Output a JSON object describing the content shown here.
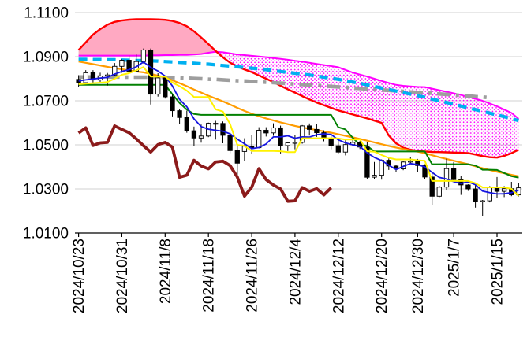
{
  "chart_data": {
    "type": "candlestick",
    "title": "",
    "style": {
      "background": "#FFFFFF",
      "grid_color": "#D0D0D0",
      "axis_color": "#000000",
      "text_color": "#000000"
    },
    "y_axis": {
      "min": 1.01,
      "max": 1.11,
      "tick_step": 0.02,
      "tick_labels": [
        "1.1100",
        "1.0900",
        "1.0700",
        "1.0500",
        "1.0300",
        "1.0100"
      ]
    },
    "x_axis": {
      "ticks": [
        {
          "label": "2024/10/23",
          "index": 0
        },
        {
          "label": "2024/10/31",
          "index": 6
        },
        {
          "label": "2024/11/8",
          "index": 12
        },
        {
          "label": "2024/11/18",
          "index": 18
        },
        {
          "label": "2024/11/26",
          "index": 24
        },
        {
          "label": "2024/12/4",
          "index": 30
        },
        {
          "label": "2024/12/12",
          "index": 36
        },
        {
          "label": "2024/12/20",
          "index": 42
        },
        {
          "label": "2024/12/30",
          "index": 47
        },
        {
          "label": "2025/1/7",
          "index": 52
        },
        {
          "label": "2025/1/15",
          "index": 58
        }
      ]
    },
    "dates": [
      "2024/10/23",
      "2024/10/24",
      "2024/10/25",
      "2024/10/28",
      "2024/10/29",
      "2024/10/30",
      "2024/10/31",
      "2024/11/1",
      "2024/11/4",
      "2024/11/5",
      "2024/11/6",
      "2024/11/7",
      "2024/11/8",
      "2024/11/11",
      "2024/11/12",
      "2024/11/13",
      "2024/11/14",
      "2024/11/15",
      "2024/11/18",
      "2024/11/19",
      "2024/11/20",
      "2024/11/21",
      "2024/11/22",
      "2024/11/25",
      "2024/11/26",
      "2024/11/27",
      "2024/11/28",
      "2024/11/29",
      "2024/12/2",
      "2024/12/3",
      "2024/12/4",
      "2024/12/5",
      "2024/12/6",
      "2024/12/9",
      "2024/12/10",
      "2024/12/11",
      "2024/12/12",
      "2024/12/13",
      "2024/12/16",
      "2024/12/17",
      "2024/12/18",
      "2024/12/19",
      "2024/12/20",
      "2024/12/23",
      "2024/12/24",
      "2024/12/26",
      "2024/12/27",
      "2024/12/30",
      "2024/12/31",
      "2025/1/2",
      "2025/1/3",
      "2025/1/6",
      "2025/1/7",
      "2025/1/8",
      "2025/1/9",
      "2025/1/10",
      "2025/1/13",
      "2025/1/14",
      "2025/1/15",
      "2025/1/16",
      "2025/1/17",
      "2025/1/20"
    ],
    "candle_style": {
      "up_fill": "#FFFFFF",
      "down_fill": "#000000",
      "stroke": "#000000"
    },
    "ohlc": {
      "open": [
        1.0797,
        1.0782,
        1.0827,
        1.0794,
        1.0812,
        1.0817,
        1.0856,
        1.0884,
        1.0834,
        1.0878,
        1.093,
        1.073,
        1.0804,
        1.0718,
        1.0655,
        1.0624,
        1.0564,
        1.0531,
        1.054,
        1.0598,
        1.0597,
        1.0543,
        1.0474,
        1.047,
        1.0494,
        1.0487,
        1.0566,
        1.0554,
        1.0577,
        1.0497,
        1.0509,
        1.0511,
        1.0586,
        1.057,
        1.0555,
        1.0527,
        1.0496,
        1.0467,
        1.0501,
        1.0511,
        1.049,
        1.0353,
        1.0362,
        1.043,
        1.0404,
        1.0391,
        1.0422,
        1.0426,
        1.0406,
        1.0354,
        1.0267,
        1.0308,
        1.0392,
        1.0342,
        1.0318,
        1.03,
        1.0244,
        1.0246,
        1.0306,
        1.0289,
        1.0301,
        1.0273
      ],
      "high": [
        1.0816,
        1.0839,
        1.0839,
        1.0827,
        1.0826,
        1.0871,
        1.0888,
        1.0905,
        1.0914,
        1.0937,
        1.0937,
        1.0825,
        1.0806,
        1.0728,
        1.0664,
        1.0655,
        1.0583,
        1.0592,
        1.0601,
        1.0609,
        1.0606,
        1.0555,
        1.0496,
        1.053,
        1.0545,
        1.058,
        1.058,
        1.0598,
        1.0587,
        1.0513,
        1.0544,
        1.059,
        1.0597,
        1.0595,
        1.0566,
        1.0539,
        1.0521,
        1.0521,
        1.0525,
        1.0518,
        1.0513,
        1.0422,
        1.0434,
        1.044,
        1.041,
        1.0426,
        1.0445,
        1.0436,
        1.0412,
        1.0374,
        1.0314,
        1.0437,
        1.0422,
        1.0359,
        1.0321,
        1.0321,
        1.025,
        1.0313,
        1.0354,
        1.0313,
        1.0332,
        1.0325
      ],
      "low": [
        1.0761,
        1.0777,
        1.078,
        1.078,
        1.0769,
        1.0812,
        1.0827,
        1.0832,
        1.0834,
        1.0869,
        1.0683,
        1.0719,
        1.071,
        1.0629,
        1.0595,
        1.0555,
        1.0496,
        1.051,
        1.0535,
        1.0524,
        1.0507,
        1.0462,
        1.0335,
        1.0425,
        1.0459,
        1.0484,
        1.0538,
        1.0541,
        1.0461,
        1.0472,
        1.048,
        1.0505,
        1.0542,
        1.0536,
        1.0516,
        1.048,
        1.0461,
        1.0452,
        1.0495,
        1.0481,
        1.0344,
        1.0343,
        1.0342,
        1.0386,
        1.0378,
        1.0385,
        1.0415,
        1.0378,
        1.0343,
        1.0226,
        1.0262,
        1.0294,
        1.0339,
        1.0273,
        1.0291,
        1.0215,
        1.0177,
        1.0239,
        1.026,
        1.0263,
        1.0267,
        1.0266
      ],
      "close": [
        1.0782,
        1.0827,
        1.0794,
        1.0812,
        1.0817,
        1.0856,
        1.0884,
        1.0834,
        1.0878,
        1.093,
        1.073,
        1.0804,
        1.0718,
        1.0655,
        1.0624,
        1.0564,
        1.0531,
        1.054,
        1.0598,
        1.0597,
        1.0543,
        1.0474,
        1.0417,
        1.0494,
        1.0487,
        1.0566,
        1.0554,
        1.0577,
        1.0497,
        1.0509,
        1.0511,
        1.0586,
        1.057,
        1.0555,
        1.0527,
        1.0496,
        1.0467,
        1.0501,
        1.0511,
        1.049,
        1.0353,
        1.0362,
        1.043,
        1.0404,
        1.0391,
        1.0422,
        1.0426,
        1.0406,
        1.0354,
        1.0267,
        1.0308,
        1.0392,
        1.0342,
        1.0318,
        1.03,
        1.0244,
        1.0246,
        1.0306,
        1.0289,
        1.0301,
        1.0273,
        1.0305
      ]
    },
    "cloud": {
      "bullish_fill": "#FFA9C2",
      "bearish_dot_color": "#FF00FF",
      "senkou_a": {
        "name": "senkou-span-a-red-line",
        "color": "#FF0000",
        "width": 2.4,
        "dash": "",
        "values": [
          1.093,
          1.0965,
          1.1,
          1.1025,
          1.1045,
          1.1058,
          1.1064,
          1.1068,
          1.107,
          1.107,
          1.107,
          1.1069,
          1.1067,
          1.1062,
          1.1053,
          1.1038,
          1.1015,
          1.0987,
          1.0957,
          1.0926,
          1.0897,
          1.0873,
          1.0855,
          1.0842,
          1.083,
          1.0815,
          1.08,
          1.0785,
          1.0768,
          1.0752,
          1.0737,
          1.0721,
          1.0706,
          1.0692,
          1.068,
          1.0668,
          1.0656,
          1.0647,
          1.0638,
          1.0629,
          1.062,
          1.061,
          1.06,
          1.0542,
          1.0507,
          1.0487,
          1.0478,
          1.0472,
          1.047,
          1.0468,
          1.0467,
          1.0466,
          1.0465,
          1.0464,
          1.0463,
          1.0456,
          1.0449,
          1.0444,
          1.0442,
          1.045,
          1.0462,
          1.0478
        ]
      },
      "senkou_b": {
        "name": "senkou-span-b-magenta-line",
        "color": "#FF00FF",
        "width": 2,
        "dash": "",
        "values": [
          1.0905,
          1.0905,
          1.0905,
          1.0905,
          1.0905,
          1.0905,
          1.0905,
          1.0905,
          1.0905,
          1.0905,
          1.0906,
          1.0906,
          1.0907,
          1.0907,
          1.0908,
          1.0908,
          1.091,
          1.0912,
          1.0918,
          1.0922,
          1.092,
          1.0915,
          1.091,
          1.0907,
          1.0904,
          1.0901,
          1.0898,
          1.0894,
          1.089,
          1.0886,
          1.0881,
          1.0877,
          1.0872,
          1.0867,
          1.0862,
          1.0857,
          1.0852,
          1.084,
          1.0828,
          1.0819,
          1.081,
          1.08,
          1.079,
          1.0781,
          1.0772,
          1.0768,
          1.0765,
          1.0763,
          1.0762,
          1.0755,
          1.0748,
          1.0741,
          1.0734,
          1.0726,
          1.0718,
          1.0709,
          1.07,
          1.0688,
          1.0675,
          1.066,
          1.0645,
          1.0618
        ]
      }
    },
    "chikou": {
      "name": "chikou-span-darkred-line",
      "color": "#8B1A1A",
      "width": 3.8,
      "shift": 26
    },
    "lines": [
      {
        "name": "long-ma-gray-dashdot-line",
        "color": "#9E9E9E",
        "width": 4.6,
        "dash": "17 7 4 7",
        "above_candles": false,
        "values": [
          1.0808,
          1.0808,
          1.0808,
          1.0808,
          1.0808,
          1.0808,
          1.0808,
          1.0807,
          1.0807,
          1.0807,
          1.0807,
          1.0806,
          1.0806,
          1.0805,
          1.0804,
          1.0803,
          1.0801,
          1.08,
          1.0798,
          1.0797,
          1.0795,
          1.0793,
          1.0791,
          1.079,
          1.0788,
          1.0786,
          1.0784,
          1.0782,
          1.078,
          1.0778,
          1.0776,
          1.0774,
          1.0772,
          1.077,
          1.0767,
          1.0765,
          1.0763,
          1.0761,
          1.0758,
          1.0756,
          1.0754,
          1.0752,
          1.0749,
          1.0747,
          1.0745,
          1.0743,
          1.074,
          1.0738,
          1.0736,
          1.0734,
          1.0731,
          1.0729,
          1.0727,
          1.0724,
          1.0722,
          1.0719,
          1.0717,
          1.0714,
          null,
          null,
          null,
          null
        ]
      },
      {
        "name": "mid-ma-cyan-dashed-line",
        "color": "#00B0F0",
        "width": 4.2,
        "dash": "11 7",
        "above_candles": false,
        "values": [
          1.0888,
          1.0888,
          1.0887,
          1.0887,
          1.0886,
          1.0886,
          1.0885,
          1.0884,
          1.0883,
          1.0882,
          1.0881,
          1.088,
          1.0878,
          1.0876,
          1.0874,
          1.0872,
          1.087,
          1.0868,
          1.0866,
          1.0863,
          1.086,
          1.0857,
          1.0854,
          1.0851,
          1.0848,
          1.0845,
          1.0841,
          1.0837,
          1.0833,
          1.0829,
          1.0825,
          1.0821,
          1.0817,
          1.0812,
          1.0807,
          1.0802,
          1.0797,
          1.0791,
          1.0785,
          1.0779,
          1.0772,
          1.0765,
          1.0758,
          1.0751,
          1.0744,
          1.0737,
          1.073,
          1.0723,
          1.0716,
          1.0708,
          1.07,
          1.0692,
          1.0684,
          1.0676,
          1.0668,
          1.066,
          1.0652,
          1.0644,
          1.0636,
          1.0628,
          1.0619,
          1.061
        ]
      },
      {
        "name": "ma25-orange-line",
        "color": "#FF9C00",
        "width": 2.2,
        "dash": "",
        "above_candles": false,
        "values": [
          1.0878,
          1.0872,
          1.0866,
          1.086,
          1.0854,
          1.0848,
          1.0843,
          1.0838,
          1.0833,
          1.0829,
          1.0822,
          1.0814,
          1.0805,
          1.0793,
          1.078,
          1.0766,
          1.0751,
          1.0737,
          1.0723,
          1.071,
          1.0697,
          1.0683,
          1.0668,
          1.0654,
          1.0641,
          1.063,
          1.062,
          1.0611,
          1.0602,
          1.0594,
          1.0586,
          1.0579,
          1.0573,
          1.0567,
          1.0561,
          1.0555,
          1.0548,
          1.0541,
          1.0534,
          1.0527,
          1.0519,
          1.0511,
          1.0503,
          1.0495,
          1.0488,
          1.0481,
          1.0475,
          1.0469,
          1.0462,
          1.0453,
          1.0444,
          1.0436,
          1.0428,
          1.042,
          1.0412,
          1.0403,
          1.0394,
          1.0386,
          1.0378,
          1.0371,
          1.0364,
          1.0357
        ]
      },
      {
        "name": "kijun-green-line",
        "color": "#038103",
        "width": 2,
        "dash": "",
        "above_candles": false,
        "values": [
          1.0772,
          1.0772,
          1.0772,
          1.0772,
          1.0772,
          1.0772,
          1.0772,
          1.0772,
          1.0772,
          1.0772,
          1.0772,
          1.0772,
          1.0772,
          1.073,
          1.069,
          1.066,
          1.064,
          1.0636,
          1.0636,
          1.0636,
          1.0636,
          1.0636,
          1.0636,
          1.0636,
          1.0636,
          1.0636,
          1.0636,
          1.0636,
          1.0636,
          1.0636,
          1.0636,
          1.0636,
          1.0636,
          1.0636,
          1.0636,
          1.0636,
          1.058,
          1.057,
          1.0532,
          1.05,
          1.0495,
          1.047,
          1.047,
          1.047,
          1.047,
          1.047,
          1.047,
          1.047,
          1.047,
          1.0412,
          1.0412,
          1.0412,
          1.0412,
          1.0412,
          1.0412,
          1.0406,
          1.0387,
          1.0387,
          1.0386,
          1.0372,
          1.0358,
          1.0351
        ]
      },
      {
        "name": "ma5-blue-line",
        "color": "#1414E0",
        "width": 1.8,
        "dash": "",
        "above_candles": true,
        "values": [
          1.079,
          1.0795,
          1.0799,
          1.0803,
          1.0806,
          1.0821,
          1.0833,
          1.0841,
          1.0854,
          1.0876,
          1.0851,
          1.0835,
          1.0812,
          1.0767,
          1.0706,
          1.0673,
          1.0618,
          1.0583,
          1.0571,
          1.0566,
          1.0562,
          1.055,
          1.0526,
          1.0505,
          1.0483,
          1.0488,
          1.0504,
          1.0536,
          1.0536,
          1.0541,
          1.053,
          1.0536,
          1.0535,
          1.0546,
          1.055,
          1.0547,
          1.0523,
          1.0509,
          1.05,
          1.0493,
          1.0464,
          1.0443,
          1.0429,
          1.0408,
          1.0388,
          1.0402,
          1.0415,
          1.041,
          1.04,
          1.0375,
          1.0352,
          1.0345,
          1.0333,
          1.0325,
          1.0332,
          1.0319,
          1.029,
          1.0283,
          1.0277,
          1.0278,
          1.0283,
          1.0295
        ]
      },
      {
        "name": "tenkan-yellow-line",
        "color": "#FFF200",
        "width": 2,
        "dash": "",
        "above_candles": true,
        "values": [
          1.0775,
          1.0778,
          1.078,
          1.0782,
          1.0785,
          1.08,
          1.0818,
          1.0825,
          1.0838,
          1.0853,
          1.081,
          1.081,
          1.081,
          1.0783,
          1.0766,
          1.0746,
          1.0717,
          1.0717,
          1.0717,
          1.0661,
          1.0651,
          1.0595,
          1.05,
          1.0495,
          1.0472,
          1.0472,
          1.0472,
          1.0472,
          1.0471,
          1.0467,
          1.0467,
          1.053,
          1.053,
          1.053,
          1.053,
          1.053,
          1.0529,
          1.0524,
          1.0524,
          1.0525,
          1.0471,
          1.0469,
          1.0454,
          1.0441,
          1.0434,
          1.0434,
          1.0434,
          1.043,
          1.0428,
          1.0336,
          1.0336,
          1.0336,
          1.0336,
          1.0336,
          1.0336,
          1.0326,
          1.0307,
          1.0307,
          1.0307,
          1.0307,
          1.03,
          1.0268
        ]
      }
    ]
  }
}
